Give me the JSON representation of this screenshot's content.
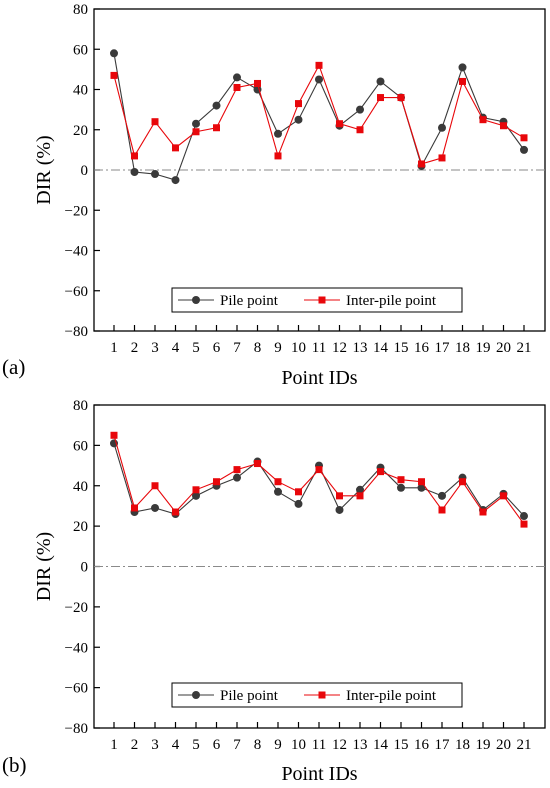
{
  "chart_data": [
    {
      "type": "line",
      "panel_label": "(a)",
      "xlabel": "Point IDs",
      "ylabel": "DIR (%)",
      "ylim": [
        -80,
        80
      ],
      "yticks": [
        80,
        60,
        40,
        20,
        0,
        -20,
        -40,
        -60,
        -80
      ],
      "categories": [
        "1",
        "2",
        "3",
        "4",
        "5",
        "6",
        "7",
        "8",
        "9",
        "10",
        "11",
        "12",
        "13",
        "14",
        "15",
        "16",
        "17",
        "18",
        "19",
        "20",
        "21"
      ],
      "reference_line": 0,
      "grid": false,
      "legend_position": "bottom-right",
      "series": [
        {
          "name": "Pile point",
          "color": "#3a3a3a",
          "marker": "circle",
          "values": [
            58,
            -1,
            -2,
            -5,
            23,
            32,
            46,
            40,
            18,
            25,
            45,
            22,
            30,
            44,
            36,
            2,
            21,
            51,
            26,
            24,
            10
          ]
        },
        {
          "name": "Inter-pile point",
          "color": "#e8070b",
          "marker": "square",
          "values": [
            47,
            7,
            24,
            11,
            19,
            21,
            41,
            43,
            7,
            33,
            52,
            23,
            20,
            36,
            36,
            3,
            6,
            44,
            25,
            22,
            16
          ]
        }
      ]
    },
    {
      "type": "line",
      "panel_label": "(b)",
      "xlabel": "Point IDs",
      "ylabel": "DIR (%)",
      "ylim": [
        -80,
        80
      ],
      "yticks": [
        80,
        60,
        40,
        20,
        0,
        -20,
        -40,
        -60,
        -80
      ],
      "categories": [
        "1",
        "2",
        "3",
        "4",
        "5",
        "6",
        "7",
        "8",
        "9",
        "10",
        "11",
        "12",
        "13",
        "14",
        "15",
        "16",
        "17",
        "18",
        "19",
        "20",
        "21"
      ],
      "reference_line": 0,
      "grid": false,
      "legend_position": "bottom-right",
      "series": [
        {
          "name": "Pile point",
          "color": "#3a3a3a",
          "marker": "circle",
          "values": [
            61,
            27,
            29,
            26,
            35,
            40,
            44,
            52,
            37,
            31,
            50,
            28,
            38,
            49,
            39,
            39,
            35,
            44,
            28,
            36,
            25
          ]
        },
        {
          "name": "Inter-pile point",
          "color": "#e8070b",
          "marker": "square",
          "values": [
            65,
            29,
            40,
            27,
            38,
            42,
            48,
            51,
            42,
            37,
            48,
            35,
            35,
            47,
            43,
            42,
            28,
            42,
            27,
            35,
            21
          ]
        }
      ]
    }
  ]
}
